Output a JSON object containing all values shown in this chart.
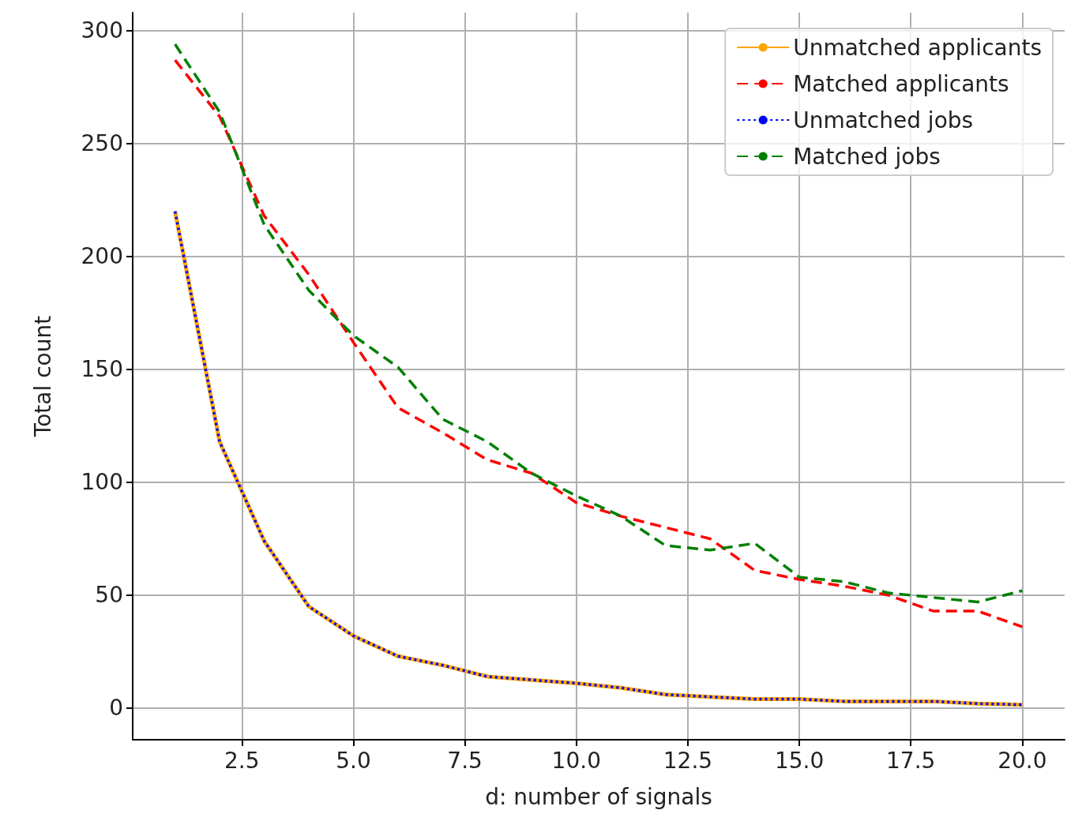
{
  "chart_data": {
    "type": "line",
    "xlabel": "d: number of signals",
    "ylabel": "Total count",
    "x": [
      1,
      2,
      3,
      4,
      5,
      6,
      7,
      8,
      9,
      10,
      11,
      12,
      13,
      14,
      15,
      16,
      17,
      18,
      19,
      20
    ],
    "series": [
      {
        "name": "Unmatched applicants",
        "color": "#ffa500",
        "line_style": "solid",
        "values": [
          220,
          118,
          74,
          45,
          32,
          23,
          19,
          14,
          12.5,
          11,
          9,
          6,
          5,
          4,
          4,
          3,
          3,
          3,
          2,
          1.5
        ]
      },
      {
        "name": "Matched applicants",
        "color": "#ff0000",
        "line_style": "dashed",
        "values": [
          287,
          262,
          218,
          192,
          162,
          133,
          122,
          110,
          104,
          91,
          85,
          80,
          75,
          61,
          57,
          54,
          50,
          43,
          43,
          36
        ]
      },
      {
        "name": "Unmatched jobs",
        "color": "#0000ff",
        "line_style": "dotted",
        "values": [
          220,
          118,
          74,
          45,
          32,
          23,
          19,
          14,
          12.5,
          11,
          9,
          6,
          5,
          4,
          4,
          3,
          3,
          3,
          2,
          1.5
        ]
      },
      {
        "name": "Matched jobs",
        "color": "#008000",
        "line_style": "dashed",
        "values": [
          294,
          264,
          214,
          185,
          165,
          151,
          128,
          118,
          104,
          94,
          85,
          72,
          70,
          73,
          58,
          56,
          51,
          49,
          47,
          52
        ]
      }
    ],
    "xlim": [
      0.05,
      20.95
    ],
    "xticks": [
      {
        "value": 2.5,
        "label": "2.5"
      },
      {
        "value": 5,
        "label": "5.0"
      },
      {
        "value": 7.5,
        "label": "7.5"
      },
      {
        "value": 10,
        "label": "10.0"
      },
      {
        "value": 12.5,
        "label": "12.5"
      },
      {
        "value": 15,
        "label": "15.0"
      },
      {
        "value": 17.5,
        "label": "17.5"
      },
      {
        "value": 20,
        "label": "20.0"
      }
    ],
    "ylim": [
      -14,
      308
    ],
    "yticks": [
      0,
      50,
      100,
      150,
      200,
      250,
      300
    ],
    "grid": true,
    "legend": "top right",
    "marker": "none"
  }
}
